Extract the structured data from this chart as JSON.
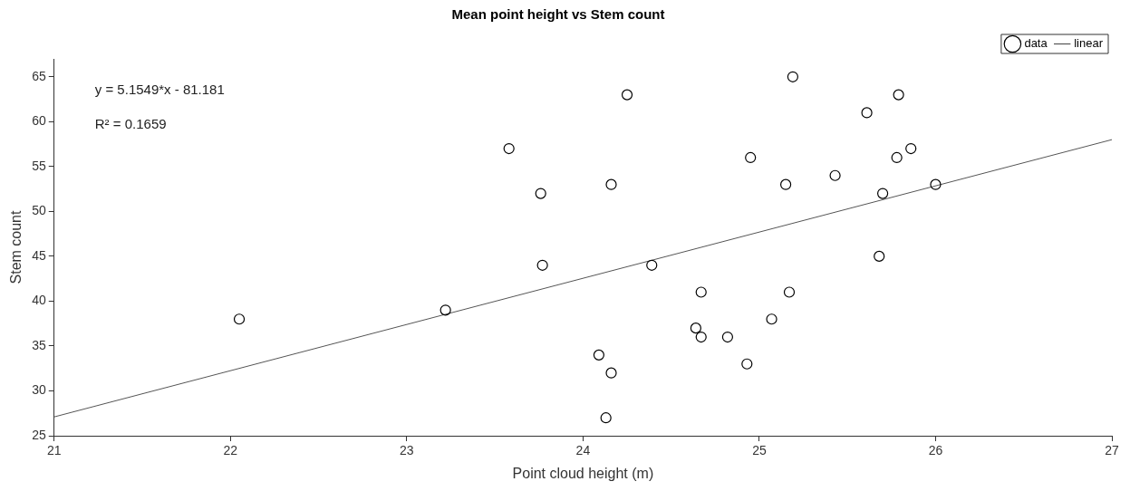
{
  "chart_data": {
    "type": "scatter",
    "title": "Mean point height vs Stem count",
    "xlabel": "Point cloud height (m)",
    "ylabel": "Stem count",
    "annotations": [
      "y = 5.1549*x - 81.181",
      "R² = 0.1659"
    ],
    "series": [
      {
        "name": "data",
        "type": "scatter",
        "marker": "circle",
        "color": "#000000",
        "x": [
          22.05,
          23.22,
          23.58,
          23.76,
          23.77,
          24.09,
          24.13,
          24.16,
          24.16,
          24.25,
          24.39,
          24.64,
          24.67,
          24.67,
          24.82,
          24.93,
          24.95,
          25.07,
          25.15,
          25.17,
          25.19,
          25.43,
          25.61,
          25.68,
          25.7,
          25.78,
          25.79,
          25.86,
          26.0
        ],
        "values": [
          38,
          39,
          57,
          52,
          44,
          34,
          27,
          32,
          53,
          63,
          44,
          37,
          36,
          41,
          36,
          33,
          56,
          38,
          53,
          41,
          65,
          54,
          61,
          45,
          52,
          56,
          63,
          57,
          53
        ]
      },
      {
        "name": "linear",
        "type": "line",
        "marker": "none",
        "line_style": "solid",
        "color": "#555555",
        "x": [
          21,
          27
        ],
        "values": [
          27.1,
          58
        ]
      }
    ],
    "xlim": [
      21,
      27
    ],
    "ylim": [
      25,
      67
    ],
    "xticks": [
      21,
      22,
      23,
      24,
      25,
      26,
      27
    ],
    "yticks": [
      25,
      30,
      35,
      40,
      45,
      50,
      55,
      60,
      65
    ],
    "grid": false,
    "legend": "top right"
  }
}
